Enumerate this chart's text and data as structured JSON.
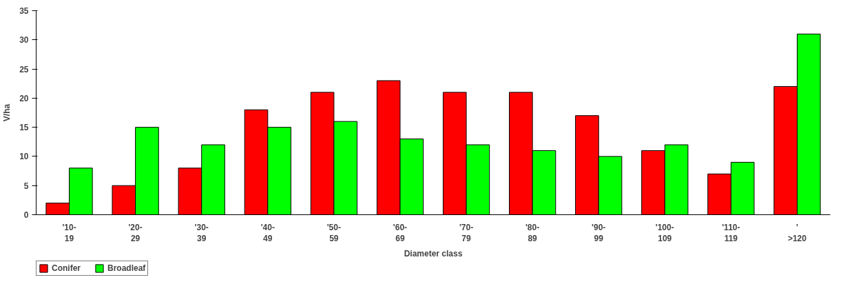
{
  "chart_data": {
    "type": "bar",
    "xlabel": "Diameter class",
    "ylabel": "V/ha",
    "categories": [
      "'10-\n19",
      "'20-\n29",
      "'30-\n39",
      "'40-\n49",
      "'50-\n59",
      "'60-\n69",
      "'70-\n79",
      "'80-\n89",
      "'90-\n99",
      "'100-\n109",
      "'110-\n119",
      "'\n>120"
    ],
    "series": [
      {
        "name": "Conifer",
        "color": "#ff0000",
        "values": [
          2,
          5,
          8,
          18,
          21,
          23,
          21,
          21,
          17,
          11,
          7,
          22
        ]
      },
      {
        "name": "Broadleaf",
        "color": "#00ff00",
        "values": [
          8,
          15,
          12,
          15,
          16,
          13,
          12,
          11,
          10,
          12,
          9,
          31
        ]
      }
    ],
    "ylim": [
      0,
      35
    ],
    "yticks": [
      0,
      5,
      10,
      15,
      20,
      25,
      30,
      35
    ],
    "grid": false,
    "legend": "bottom left"
  }
}
